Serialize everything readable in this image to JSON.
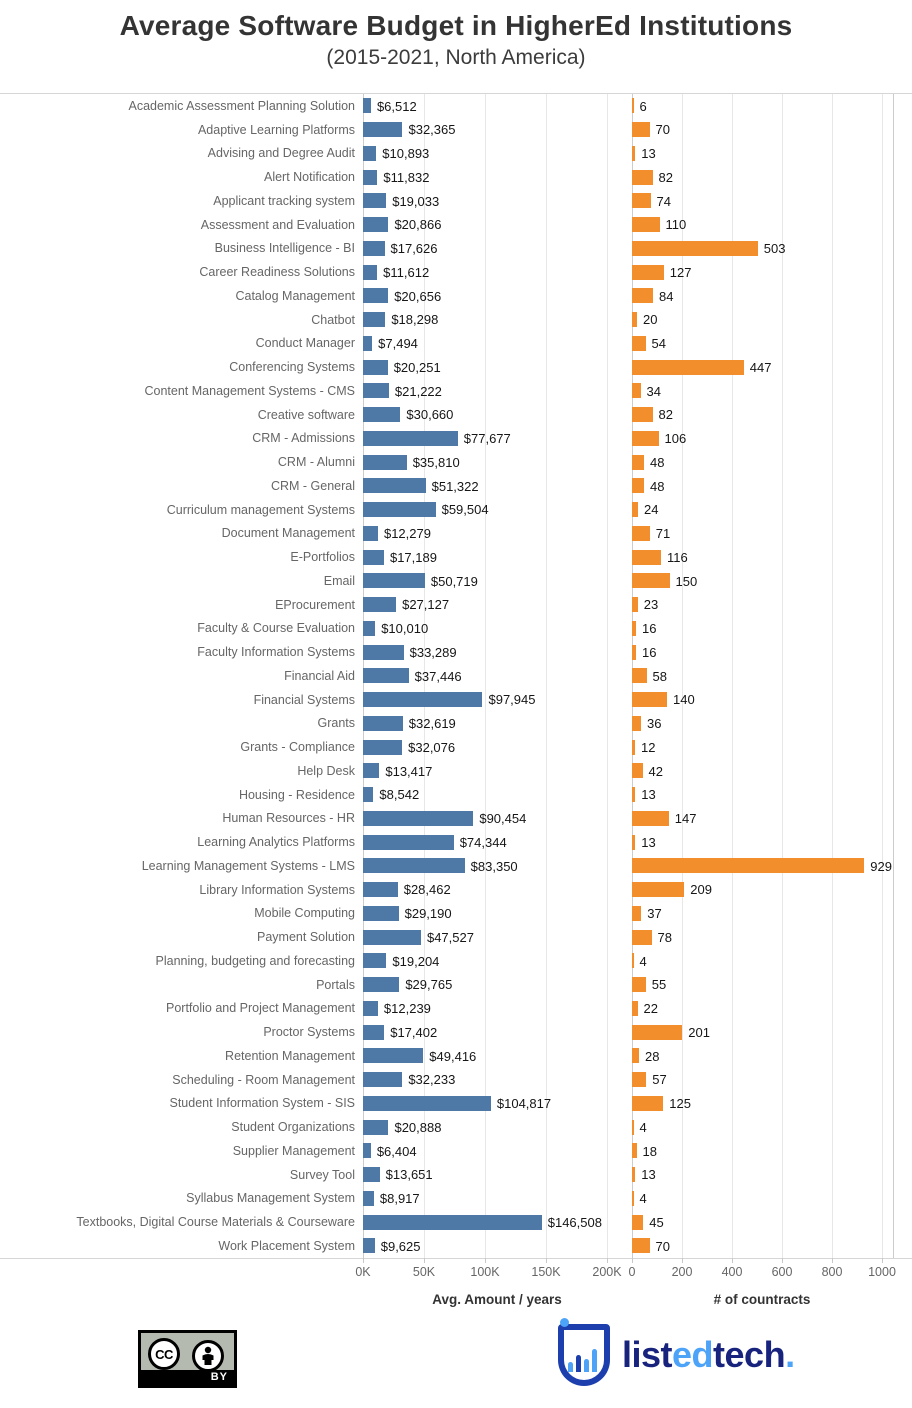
{
  "title": "Average Software Budget in HigherEd Institutions",
  "subtitle": "(2015-2021, North America)",
  "chart_data": {
    "type": "bar",
    "orientation": "horizontal",
    "grid": true,
    "categories": [
      "Academic Assessment Planning Solution",
      "Adaptive Learning Platforms",
      "Advising and Degree Audit",
      "Alert Notification",
      "Applicant tracking system",
      "Assessment and Evaluation",
      "Business Intelligence - BI",
      "Career Readiness Solutions",
      "Catalog Management",
      "Chatbot",
      "Conduct Manager",
      "Conferencing Systems",
      "Content Management Systems - CMS",
      "Creative software",
      "CRM - Admissions",
      "CRM - Alumni",
      "CRM - General",
      "Curriculum management Systems",
      "Document Management",
      "E-Portfolios",
      "Email",
      "EProcurement",
      "Faculty & Course Evaluation",
      "Faculty Information Systems",
      "Financial Aid",
      "Financial Systems",
      "Grants",
      "Grants - Compliance",
      "Help Desk",
      "Housing - Residence",
      "Human Resources - HR",
      "Learning Analytics Platforms",
      "Learning Management Systems - LMS",
      "Library Information Systems",
      "Mobile Computing",
      "Payment Solution",
      "Planning, budgeting and forecasting",
      "Portals",
      "Portfolio and Project Management",
      "Proctor Systems",
      "Retention Management",
      "Scheduling - Room Management",
      "Student Information System - SIS",
      "Student Organizations",
      "Supplier Management",
      "Survey Tool",
      "Syllabus Management System",
      "Textbooks, Digital Course Materials & Courseware",
      "Work Placement System"
    ],
    "series": [
      {
        "name": "Avg. Amount / years",
        "color": "#4e79a7",
        "value_prefix": "$",
        "values": [
          6512,
          32365,
          10893,
          11832,
          19033,
          20866,
          17626,
          11612,
          20656,
          18298,
          7494,
          20251,
          21222,
          30660,
          77677,
          35810,
          51322,
          59504,
          12279,
          17189,
          50719,
          27127,
          10010,
          33289,
          37446,
          97945,
          32619,
          32076,
          13417,
          8542,
          90454,
          74344,
          83350,
          28462,
          29190,
          47527,
          19204,
          29765,
          12239,
          17402,
          49416,
          32233,
          104817,
          20888,
          6404,
          13651,
          8917,
          146508,
          9625
        ]
      },
      {
        "name": "# of countracts",
        "color": "#f28e2b",
        "value_prefix": "",
        "values": [
          6,
          70,
          13,
          82,
          74,
          110,
          503,
          127,
          84,
          20,
          54,
          447,
          34,
          82,
          106,
          48,
          48,
          24,
          71,
          116,
          150,
          23,
          16,
          16,
          58,
          140,
          36,
          12,
          42,
          13,
          147,
          13,
          929,
          209,
          37,
          78,
          4,
          55,
          22,
          201,
          28,
          57,
          125,
          4,
          18,
          13,
          4,
          45,
          70
        ]
      }
    ],
    "left_axis": {
      "label": "Avg. Amount / years",
      "ticks": [
        "0K",
        "50K",
        "100K",
        "150K",
        "200K"
      ],
      "tick_values": [
        0,
        50000,
        100000,
        150000,
        200000
      ],
      "lim": [
        0,
        220000
      ]
    },
    "right_axis": {
      "label": "# of countracts",
      "ticks": [
        "0",
        "200",
        "400",
        "600",
        "800",
        "1000"
      ],
      "tick_values": [
        0,
        200,
        400,
        600,
        800,
        1000
      ],
      "lim": [
        0,
        1040
      ]
    }
  },
  "footer": {
    "cc": {
      "circle1": "CC",
      "strip": "BY"
    },
    "logo": {
      "part1": "list",
      "part2": "ed",
      "part3": "tech",
      "part4": ".",
      "navy": "#18237d",
      "light": "#4da3f8",
      "shield": "#1d3fae"
    }
  }
}
